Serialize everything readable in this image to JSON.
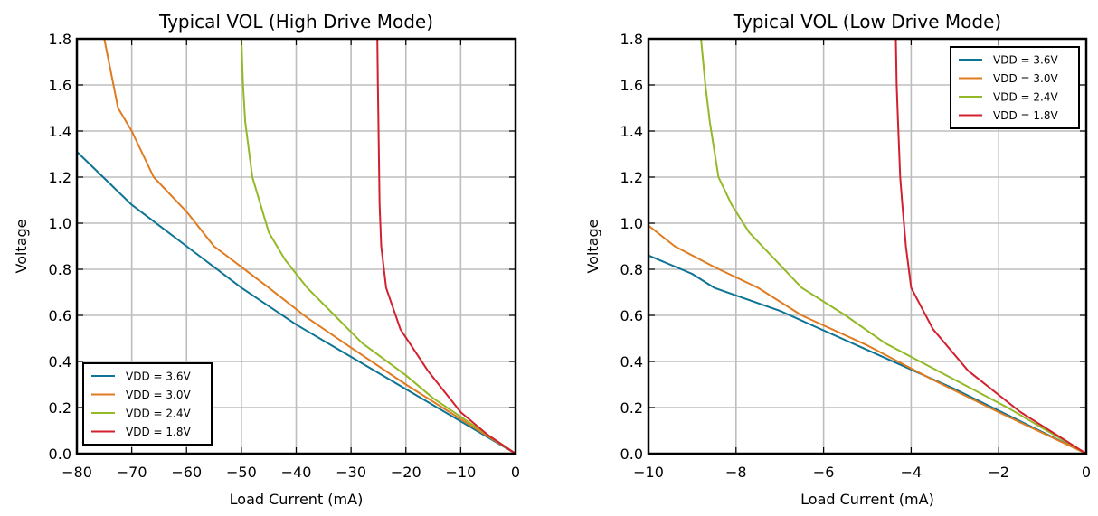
{
  "chart_data": [
    {
      "type": "line",
      "title": "Typical VOL (High Drive Mode)",
      "xlabel": "Load Current (mA)",
      "ylabel": "Voltage",
      "xlim": [
        -80,
        0
      ],
      "ylim": [
        0,
        1.8
      ],
      "xticks": [
        -80,
        -70,
        -60,
        -50,
        -40,
        -30,
        -20,
        -10,
        0
      ],
      "xtick_labels": [
        "−80",
        "−70",
        "−60",
        "−50",
        "−40",
        "−30",
        "−20",
        "−10",
        "0"
      ],
      "yticks": [
        0,
        0.2,
        0.4,
        0.6,
        0.8,
        1.0,
        1.2,
        1.4,
        1.6,
        1.8
      ],
      "ytick_labels": [
        "0.0",
        "0.2",
        "0.4",
        "0.6",
        "0.8",
        "1.0",
        "1.2",
        "1.4",
        "1.6",
        "1.8"
      ],
      "grid": true,
      "legend_position": "lower-left",
      "series": [
        {
          "name": "VDD = 3.6V",
          "color": "#0e7494",
          "x": [
            -80,
            -70,
            -60,
            -50,
            -40,
            -30,
            -20,
            -10,
            0
          ],
          "y": [
            1.31,
            1.08,
            0.9,
            0.72,
            0.56,
            0.42,
            0.28,
            0.14,
            0.0
          ]
        },
        {
          "name": "VDD = 3.0V",
          "color": "#e07b20",
          "x": [
            -75,
            -72.5,
            -70,
            -66,
            -60,
            -55,
            -50,
            -45,
            -38,
            -30,
            -20,
            -10,
            0
          ],
          "y": [
            1.8,
            1.5,
            1.4,
            1.2,
            1.05,
            0.9,
            0.81,
            0.72,
            0.59,
            0.46,
            0.3,
            0.15,
            0.0
          ]
        },
        {
          "name": "VDD = 2.4V",
          "color": "#93b927",
          "x": [
            -50,
            -49.7,
            -49.3,
            -48,
            -45,
            -42,
            -38,
            -33,
            -28,
            -20,
            -15,
            -10,
            0
          ],
          "y": [
            1.8,
            1.6,
            1.44,
            1.2,
            0.96,
            0.84,
            0.72,
            0.6,
            0.48,
            0.34,
            0.24,
            0.16,
            0.0
          ]
        },
        {
          "name": "VDD = 1.8V",
          "color": "#d3202f",
          "x": [
            -25.2,
            -25.1,
            -25.0,
            -24.8,
            -24.5,
            -23.6,
            -21,
            -16,
            -10,
            -5,
            0
          ],
          "y": [
            1.8,
            1.6,
            1.44,
            1.08,
            0.9,
            0.72,
            0.54,
            0.36,
            0.18,
            0.08,
            0.0
          ]
        }
      ]
    },
    {
      "type": "line",
      "title": "Typical VOL (Low Drive Mode)",
      "xlabel": "Load Current (mA)",
      "ylabel": "Voltage",
      "xlim": [
        -10,
        0
      ],
      "ylim": [
        0,
        1.8
      ],
      "xticks": [
        -10,
        -8,
        -6,
        -4,
        -2,
        0
      ],
      "xtick_labels": [
        "−10",
        "−8",
        "−6",
        "−4",
        "−2",
        "0"
      ],
      "yticks": [
        0,
        0.2,
        0.4,
        0.6,
        0.8,
        1.0,
        1.2,
        1.4,
        1.6,
        1.8
      ],
      "ytick_labels": [
        "0.0",
        "0.2",
        "0.4",
        "0.6",
        "0.8",
        "1.0",
        "1.2",
        "1.4",
        "1.6",
        "1.8"
      ],
      "grid": true,
      "legend_position": "upper-right",
      "series": [
        {
          "name": "VDD = 3.6V",
          "color": "#0e7494",
          "x": [
            -10,
            -9,
            -8.5,
            -7,
            -5,
            -3,
            -1.5,
            0
          ],
          "y": [
            0.86,
            0.78,
            0.72,
            0.62,
            0.45,
            0.28,
            0.14,
            0.0
          ]
        },
        {
          "name": "VDD = 3.0V",
          "color": "#e07b20",
          "x": [
            -10,
            -9.4,
            -8.5,
            -7.5,
            -6.5,
            -5,
            -3.5,
            -2,
            0
          ],
          "y": [
            0.99,
            0.9,
            0.81,
            0.72,
            0.6,
            0.47,
            0.32,
            0.18,
            0.0
          ]
        },
        {
          "name": "VDD = 2.4V",
          "color": "#93b927",
          "x": [
            -8.8,
            -8.7,
            -8.6,
            -8.4,
            -8.1,
            -7.7,
            -7.1,
            -6.5,
            -5.5,
            -4.6,
            -3.2,
            -1.8,
            0
          ],
          "y": [
            1.8,
            1.6,
            1.44,
            1.2,
            1.08,
            0.96,
            0.84,
            0.72,
            0.6,
            0.48,
            0.34,
            0.2,
            0.0
          ]
        },
        {
          "name": "VDD = 1.8V",
          "color": "#d3202f",
          "x": [
            -4.35,
            -4.33,
            -4.3,
            -4.25,
            -4.2,
            -4.12,
            -4.0,
            -3.5,
            -2.7,
            -1.5,
            0
          ],
          "y": [
            1.8,
            1.6,
            1.44,
            1.2,
            1.08,
            0.9,
            0.72,
            0.54,
            0.36,
            0.18,
            0.0
          ]
        }
      ]
    }
  ]
}
